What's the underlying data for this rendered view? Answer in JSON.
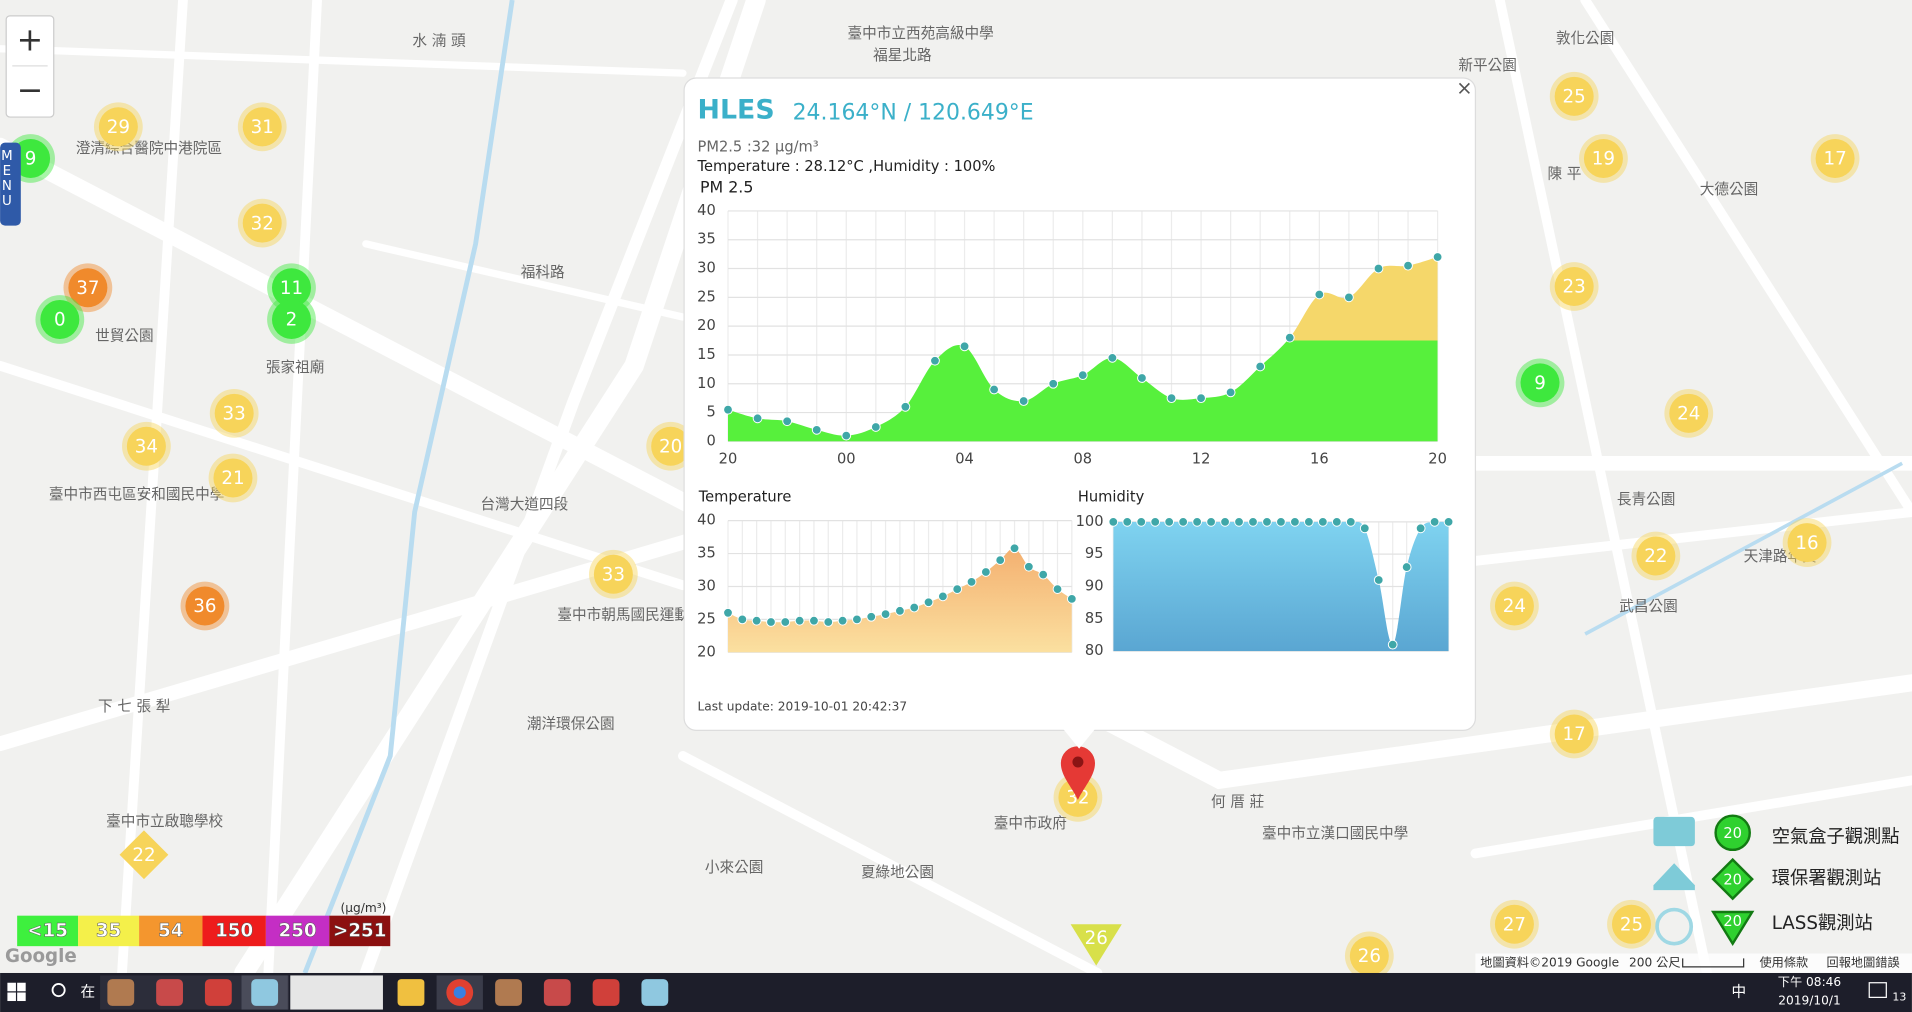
{
  "map": {
    "zoom_in": "+",
    "zoom_out": "−",
    "menu": "MENU",
    "places": [
      "水 湳 頭",
      "臺中市立西苑高級中學",
      "福星北路",
      "敦化公園",
      "新平公園",
      "陳 平",
      "大德公園",
      "澄清綜合醫院中港院區",
      "世貿公園",
      "張家祖廟",
      "臺中市西屯區安和國民中學",
      "下 七 張 犁",
      "臺中市立啟聰學校",
      "臺中市朝馬國民運動中心",
      "潮洋環保公園",
      "臺中市政府",
      "夏綠地公園",
      "何 厝 莊",
      "臺中市立漢口國民中學",
      "武昌公園",
      "天津路年貨",
      "小來公園",
      "福科路",
      "台灣大道四段",
      "長青公園"
    ],
    "markers": [
      {
        "value": 29,
        "color": "#f7d45a"
      },
      {
        "value": 31,
        "color": "#f7d45a"
      },
      {
        "value": 9,
        "color": "#3ee83e"
      },
      {
        "value": 32,
        "color": "#f7d45a"
      },
      {
        "value": 37,
        "color": "#f08a2c"
      },
      {
        "value": 11,
        "color": "#3ee83e"
      },
      {
        "value": 0,
        "color": "#3ee83e"
      },
      {
        "value": 2,
        "color": "#3ee83e"
      },
      {
        "value": 33,
        "color": "#f7d45a"
      },
      {
        "value": 34,
        "color": "#f7d45a"
      },
      {
        "value": 21,
        "color": "#f7d45a"
      },
      {
        "value": 36,
        "color": "#f08a2c"
      },
      {
        "value": 33,
        "color": "#f7d45a"
      },
      {
        "value": 20,
        "color": "#f7d45a"
      },
      {
        "value": 32,
        "color": "#f7d45a"
      },
      {
        "value": 25,
        "color": "#f7d45a"
      },
      {
        "value": 19,
        "color": "#f7d45a"
      },
      {
        "value": 17,
        "color": "#f7d45a"
      },
      {
        "value": 23,
        "color": "#f7d45a"
      },
      {
        "value": 9,
        "color": "#3ee83e"
      },
      {
        "value": 24,
        "color": "#f7d45a"
      },
      {
        "value": 16,
        "color": "#f7d45a"
      },
      {
        "value": 22,
        "color": "#f7d45a"
      },
      {
        "value": 24,
        "color": "#f7d45a"
      },
      {
        "value": 17,
        "color": "#f7d45a"
      },
      {
        "value": 27,
        "color": "#f7d45a"
      },
      {
        "value": 25,
        "color": "#f7d45a"
      },
      {
        "value": 26,
        "color": "#f7d45a"
      }
    ],
    "diamond_marker": {
      "value": 22,
      "color": "#f7d45a"
    },
    "triangle_marker": {
      "value": 26,
      "color": "#d8e04a"
    }
  },
  "popup": {
    "title": "HLES",
    "coords": "24.164°N / 120.649°E",
    "pm25_line": "PM2.5 :32 μg/m³",
    "weather_line": "Temperature : 28.12°C ,Humidity : 100%",
    "close": "×",
    "last_update": "Last update: 2019-10-01 20:42:37",
    "charts": [
      {
        "type": "area",
        "title": "PM 2.5",
        "x": [
          0,
          1,
          2,
          3,
          4,
          5,
          6,
          7,
          8,
          9,
          10,
          11,
          12,
          13,
          14,
          15,
          16,
          17,
          18,
          19,
          20,
          21,
          22,
          23,
          24
        ],
        "values": [
          5.5,
          4,
          3.5,
          2,
          1,
          2.5,
          6,
          14,
          16.5,
          9,
          7,
          10,
          11.5,
          14.5,
          11,
          7.5,
          7.5,
          8.5,
          13,
          18,
          25.5,
          25,
          30,
          30.5,
          32
        ],
        "xlim": [
          0,
          24
        ],
        "xticks": [
          {
            "value": 0,
            "label": "20"
          },
          {
            "value": 4,
            "label": "00"
          },
          {
            "value": 8,
            "label": "04"
          },
          {
            "value": 12,
            "label": "08"
          },
          {
            "value": 16,
            "label": "12"
          },
          {
            "value": 20,
            "label": "16"
          },
          {
            "value": 24,
            "label": "20"
          }
        ],
        "ylim": [
          0,
          40
        ],
        "yticks": [
          0,
          5,
          10,
          15,
          20,
          25,
          30,
          35,
          40
        ],
        "color": "#57f03c",
        "upper_color": "#f5d76a",
        "split_value": 17.5,
        "point_color": "#3fa7a8",
        "grid": true
      },
      {
        "type": "area",
        "title": "Temperature",
        "x": [
          0,
          1,
          2,
          3,
          4,
          5,
          6,
          7,
          8,
          9,
          10,
          11,
          12,
          13,
          14,
          15,
          16,
          17,
          18,
          19,
          20,
          21,
          22,
          23,
          24
        ],
        "values": [
          26,
          25,
          24.8,
          24.6,
          24.6,
          24.8,
          24.8,
          24.6,
          24.8,
          25,
          25.4,
          25.8,
          26.3,
          26.8,
          27.6,
          28.5,
          29.6,
          30.7,
          32.2,
          34,
          35.8,
          33,
          31.8,
          29.6,
          28.12
        ],
        "xlim": [
          0,
          24
        ],
        "ylim": [
          20,
          40
        ],
        "yticks": [
          20,
          25,
          30,
          35,
          40
        ],
        "color": "#f9d28c",
        "point_color": "#3fa7a8",
        "grid": true
      },
      {
        "type": "area",
        "title": "Humidity",
        "x": [
          0,
          1,
          2,
          3,
          4,
          5,
          6,
          7,
          8,
          9,
          10,
          11,
          12,
          13,
          14,
          15,
          16,
          17,
          18,
          19,
          20,
          21,
          22,
          23,
          24
        ],
        "values": [
          100,
          100,
          100,
          100,
          100,
          100,
          100,
          100,
          100,
          100,
          100,
          100,
          100,
          100,
          100,
          100,
          100,
          100,
          99,
          91,
          81,
          93,
          99,
          100,
          100
        ],
        "xlim": [
          0,
          24
        ],
        "ylim": [
          80,
          100
        ],
        "yticks": [
          80,
          85,
          90,
          95,
          100
        ],
        "color": "#6cc2e4",
        "point_color": "#3fa7a8",
        "grid": true
      }
    ]
  },
  "aqi_legend": {
    "unit": "(μg/m³)",
    "levels": [
      {
        "label": "<15",
        "color": "#3ef03e"
      },
      {
        "label": "35",
        "color": "#f4f04a"
      },
      {
        "label": "54",
        "color": "#f4962e"
      },
      {
        "label": "150",
        "color": "#ee1c1c"
      },
      {
        "label": "250",
        "color": "#c42ec4"
      },
      {
        "label": ">251",
        "color": "#8c1010"
      }
    ]
  },
  "station_legend": {
    "items": [
      {
        "label": "空氣盒子觀測點",
        "icon_value": 20
      },
      {
        "label": "環保署觀測站",
        "icon_value": 20
      },
      {
        "label": "LASS觀測站",
        "icon_value": 20
      }
    ]
  },
  "attribution": {
    "google": "Google",
    "map_data": "地圖資料©2019 Google",
    "scale": "200 公尺",
    "terms": "使用條款",
    "report": "回報地圖錯誤"
  },
  "taskbar": {
    "search": "在",
    "ime": "中",
    "time": "下午 08:46",
    "date": "2019/10/1",
    "notifications": "13"
  }
}
